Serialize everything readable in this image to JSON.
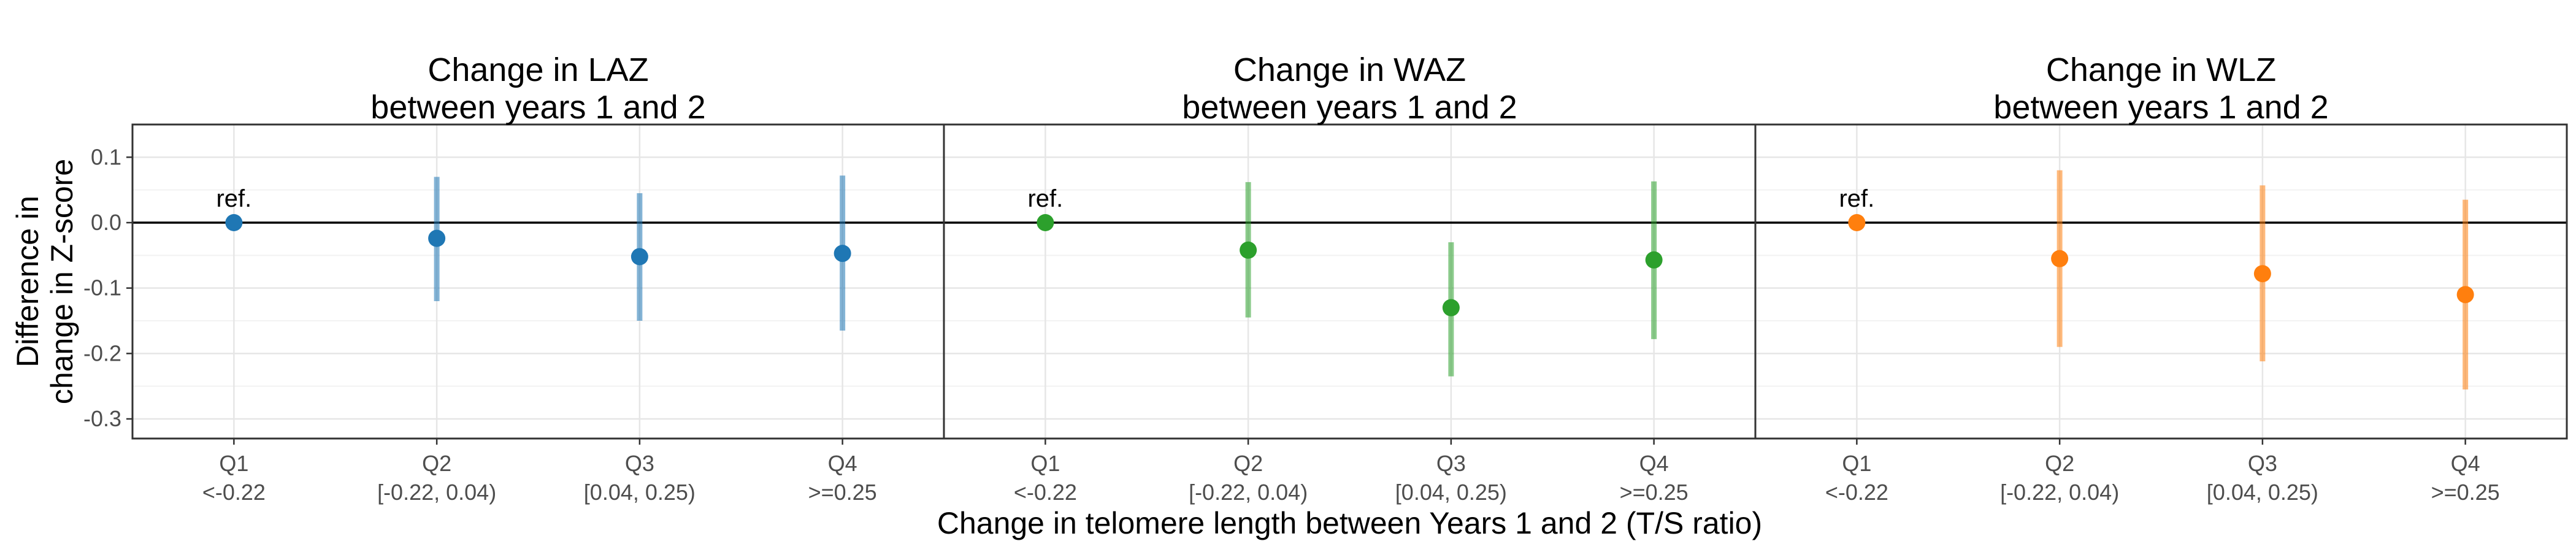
{
  "chart_data": {
    "type": "scatter",
    "xlabel": "Change in telomere length between Years 1 and 2 (T/S ratio)",
    "ylabel": [
      "Difference in",
      "change in Z-score"
    ],
    "ylim": [
      -0.33,
      0.15
    ],
    "yticks": [
      0.1,
      0.0,
      -0.1,
      -0.2,
      -0.3
    ],
    "ytick_labels": [
      "0.1",
      "0.0",
      "-0.1",
      "-0.2",
      "-0.3"
    ],
    "grid": true,
    "reference_line_y": 0,
    "categories": [
      {
        "q": "Q1",
        "range": "<-0.22"
      },
      {
        "q": "Q2",
        "range": "[-0.22, 0.04)"
      },
      {
        "q": "Q3",
        "range": "[0.04, 0.25)"
      },
      {
        "q": "Q4",
        "range": ">=0.25"
      }
    ],
    "ref_label": "ref.",
    "panels": [
      {
        "title": [
          "Change in LAZ",
          "between years 1 and 2"
        ],
        "color": "#1f77b4",
        "points": [
          {
            "est": 0.0,
            "lo": null,
            "hi": null
          },
          {
            "est": -0.024,
            "lo": -0.12,
            "hi": 0.07
          },
          {
            "est": -0.052,
            "lo": -0.15,
            "hi": 0.045
          },
          {
            "est": -0.047,
            "lo": -0.165,
            "hi": 0.072
          }
        ]
      },
      {
        "title": [
          "Change in WAZ",
          "between years 1 and 2"
        ],
        "color": "#2ca02c",
        "points": [
          {
            "est": 0.0,
            "lo": null,
            "hi": null
          },
          {
            "est": -0.042,
            "lo": -0.145,
            "hi": 0.062
          },
          {
            "est": -0.13,
            "lo": -0.235,
            "hi": -0.03
          },
          {
            "est": -0.057,
            "lo": -0.178,
            "hi": 0.063
          }
        ]
      },
      {
        "title": [
          "Change in WLZ",
          "between years 1 and 2"
        ],
        "color": "#ff7f0e",
        "points": [
          {
            "est": 0.0,
            "lo": null,
            "hi": null
          },
          {
            "est": -0.055,
            "lo": -0.19,
            "hi": 0.08
          },
          {
            "est": -0.078,
            "lo": -0.212,
            "hi": 0.057
          },
          {
            "est": -0.11,
            "lo": -0.255,
            "hi": 0.035
          }
        ]
      }
    ]
  }
}
